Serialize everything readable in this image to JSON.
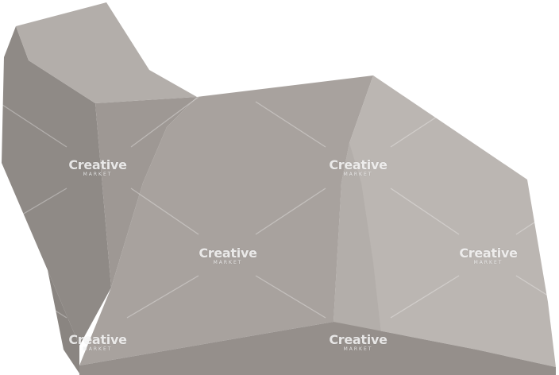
{
  "image": {
    "subject": "low-poly-rock",
    "background_color": "#ffffff",
    "palette": {
      "darkest": "#8f8a86",
      "dark": "#9e9894",
      "mid": "#a8a29e",
      "light": "#b3aeaa",
      "lightest": "#bbb6b2",
      "bottom_band": "#958f8b"
    }
  },
  "watermark": {
    "brand": "Creative",
    "sub": "MARKET",
    "opacity": 0.82
  }
}
